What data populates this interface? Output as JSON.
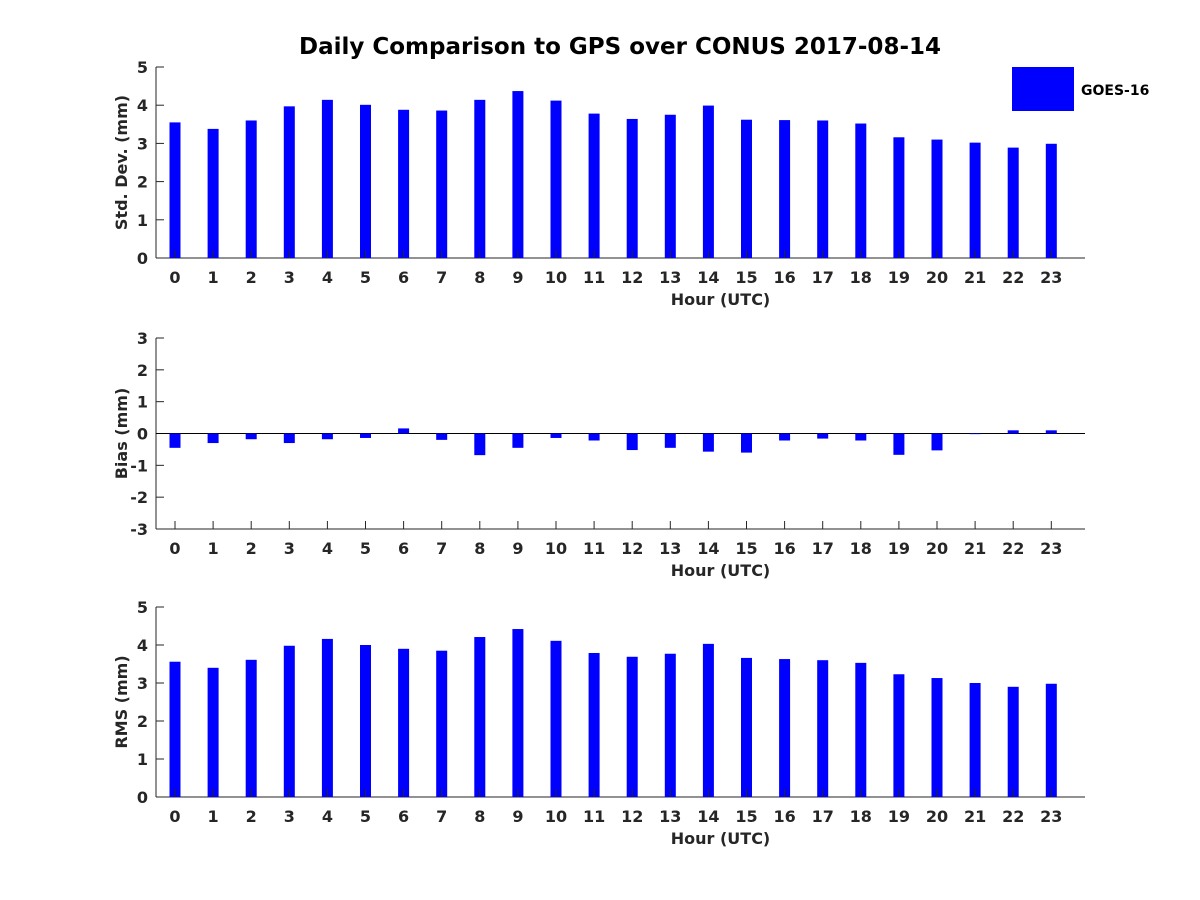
{
  "figure": {
    "title": "Daily Comparison to GPS over CONUS 2017-08-14",
    "legend": {
      "label": "GOES-16",
      "color": "#0000ff",
      "placement": "top-right"
    },
    "bar_color": "#0000ff"
  },
  "chart_data": [
    {
      "type": "bar",
      "title": "Daily Comparison to GPS over CONUS 2017-08-14",
      "xlabel": "Hour (UTC)",
      "ylabel": "Std. Dev. (mm)",
      "ylim": [
        0,
        5
      ],
      "yticks": [
        0,
        1,
        2,
        3,
        4,
        5
      ],
      "categories": [
        "0",
        "1",
        "2",
        "3",
        "4",
        "5",
        "6",
        "7",
        "8",
        "9",
        "10",
        "11",
        "12",
        "13",
        "14",
        "15",
        "16",
        "17",
        "18",
        "19",
        "20",
        "21",
        "22",
        "23"
      ],
      "series": [
        {
          "name": "GOES-16",
          "values": [
            3.55,
            3.38,
            3.6,
            3.97,
            4.14,
            4.01,
            3.88,
            3.86,
            4.14,
            4.37,
            4.12,
            3.78,
            3.64,
            3.75,
            3.99,
            3.62,
            3.61,
            3.6,
            3.52,
            3.16,
            3.1,
            3.02,
            2.89,
            2.99
          ]
        }
      ],
      "grid": false,
      "legend": "top-right"
    },
    {
      "type": "bar",
      "xlabel": "Hour (UTC)",
      "ylabel": "Bias (mm)",
      "ylim": [
        -3,
        3
      ],
      "yticks": [
        -3,
        -2,
        -1,
        0,
        1,
        2,
        3
      ],
      "categories": [
        "0",
        "1",
        "2",
        "3",
        "4",
        "5",
        "6",
        "7",
        "8",
        "9",
        "10",
        "11",
        "12",
        "13",
        "14",
        "15",
        "16",
        "17",
        "18",
        "19",
        "20",
        "21",
        "22",
        "23"
      ],
      "series": [
        {
          "name": "GOES-16",
          "values": [
            -0.45,
            -0.3,
            -0.18,
            -0.3,
            -0.18,
            -0.14,
            0.16,
            -0.2,
            -0.68,
            -0.45,
            -0.14,
            -0.22,
            -0.52,
            -0.45,
            -0.57,
            -0.6,
            -0.22,
            -0.16,
            -0.22,
            -0.67,
            -0.53,
            -0.02,
            0.1,
            0.1
          ]
        }
      ],
      "grid": false
    },
    {
      "type": "bar",
      "xlabel": "Hour (UTC)",
      "ylabel": "RMS (mm)",
      "ylim": [
        0,
        5
      ],
      "yticks": [
        0,
        1,
        2,
        3,
        4,
        5
      ],
      "categories": [
        "0",
        "1",
        "2",
        "3",
        "4",
        "5",
        "6",
        "7",
        "8",
        "9",
        "10",
        "11",
        "12",
        "13",
        "14",
        "15",
        "16",
        "17",
        "18",
        "19",
        "20",
        "21",
        "22",
        "23"
      ],
      "series": [
        {
          "name": "GOES-16",
          "values": [
            3.56,
            3.4,
            3.61,
            3.98,
            4.16,
            4.0,
            3.9,
            3.85,
            4.21,
            4.42,
            4.11,
            3.79,
            3.69,
            3.77,
            4.03,
            3.66,
            3.63,
            3.6,
            3.53,
            3.23,
            3.13,
            3.0,
            2.9,
            2.98
          ]
        }
      ],
      "grid": false
    }
  ]
}
